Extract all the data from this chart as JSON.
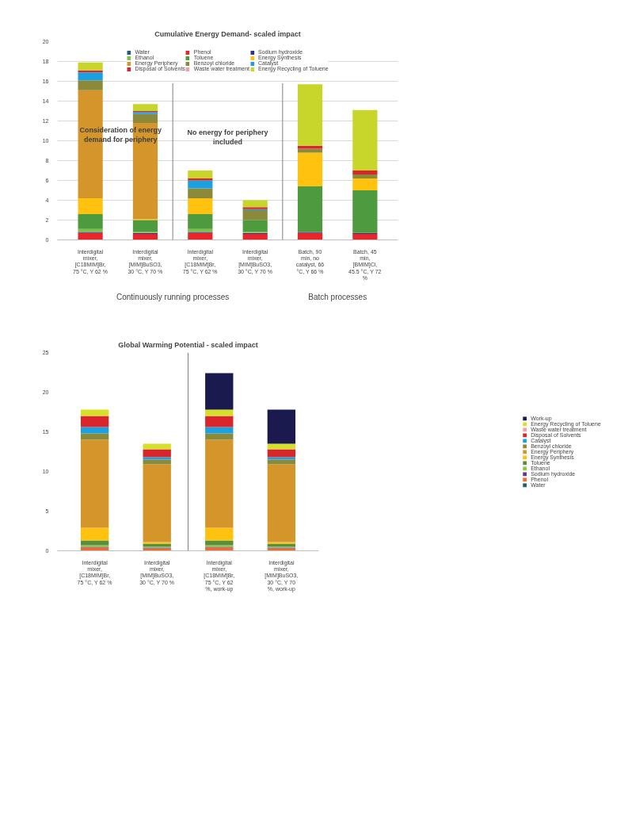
{
  "chart_data": [
    {
      "type": "bar",
      "stacked": true,
      "title": "Cumulative Energy Demand- scaled impact",
      "categories": [
        "Interdigital mixer, [C18MIM]Br, 75 °C, Y 62 %",
        "Interdigital mixer, [MIM]BuSO3, 30 °C, Y 70 %",
        "Interdigital mixer, [C18MIM]Br, 75 °C, Y 62 %",
        "Interdigital mixer, [MIM]BuSO3, 30 °C, Y 70 %",
        "Batch, 90 min, no catalyst, 66 °C, Y 66 %",
        "Batch, 45 min, [BMIM]Cl, 45.5 °C, Y 72 %"
      ],
      "series": [
        {
          "name": "Water",
          "color": "#1f5f7a",
          "values": [
            0,
            0,
            0,
            0,
            0,
            0
          ]
        },
        {
          "name": "Phenol",
          "color": "#e8262a",
          "values": [
            0.7,
            0.6,
            0.7,
            0.6,
            0.7,
            0.6
          ]
        },
        {
          "name": "Sodium hydroxide",
          "color": "#3b2f8a",
          "values": [
            0.1,
            0.1,
            0.1,
            0.1,
            0.1,
            0.1
          ]
        },
        {
          "name": "Ethanol",
          "color": "#7cc243",
          "values": [
            0.3,
            0.1,
            0.3,
            0.1,
            0,
            0
          ]
        },
        {
          "name": "Toluene",
          "color": "#4e9a3e",
          "values": [
            1.5,
            1.2,
            1.5,
            1.2,
            4.6,
            4.3
          ]
        },
        {
          "name": "Energy Synthesis",
          "color": "#ffc20e",
          "values": [
            1.6,
            0.1,
            1.6,
            0,
            3.4,
            1.2
          ]
        },
        {
          "name": "Energy Periphery",
          "color": "#d4952a",
          "values": [
            10.9,
            9.7,
            0,
            0,
            0,
            0
          ]
        },
        {
          "name": "Benzoyl chloride",
          "color": "#8b8a3a",
          "values": [
            1.0,
            0.9,
            1.0,
            1.0,
            0.4,
            0.4
          ]
        },
        {
          "name": "Catalyst",
          "color": "#1ba1e2",
          "values": [
            0.8,
            0.2,
            0.8,
            0.1,
            0,
            0
          ]
        },
        {
          "name": "Disposal of Solvents",
          "color": "#d9262c",
          "values": [
            0.2,
            0.1,
            0.2,
            0.2,
            0.3,
            0.4
          ]
        },
        {
          "name": "Waste water treatment",
          "color": "#f4a0a0",
          "values": [
            0,
            0,
            0,
            0,
            0,
            0
          ]
        },
        {
          "name": "Energy Recycling of Toluene",
          "color": "#c8d62b",
          "values": [
            0.8,
            0.7,
            0.8,
            0.7,
            6.2,
            6.1
          ]
        }
      ],
      "ylim": [
        0,
        20
      ],
      "yticks": [
        0,
        2,
        4,
        6,
        8,
        10,
        12,
        14,
        16,
        18,
        20
      ],
      "grid": "y",
      "legend": "top",
      "annotations": [
        "Consideration of energy demand for periphery",
        "No energy for periphery included",
        "Continuously running processes",
        "Batch processes"
      ]
    },
    {
      "type": "bar",
      "stacked": true,
      "title": "Global Warming Potential - scaled impact",
      "categories": [
        "Interdigital mixer, [C18MIM]Br, 75 °C, Y 62 %",
        "Interdigital mixer, [MIM]BuSO3, 30 °C, Y 70 %",
        "Interdigital mixer, [C18MIM]Br, 75 °C, Y 62 %, work-up",
        "Interdigital mixer, [MIM]BuSO3, 30 °C, Y 70 %, work-up"
      ],
      "series": [
        {
          "name": "Water",
          "color": "#1f5f7a",
          "values": [
            0,
            0,
            0,
            0
          ]
        },
        {
          "name": "Phenol",
          "color": "#f26b2a",
          "values": [
            0.4,
            0.3,
            0.4,
            0.3
          ]
        },
        {
          "name": "Sodium hydroxide",
          "color": "#5b3a8f",
          "values": [
            0.1,
            0.1,
            0.1,
            0.1
          ]
        },
        {
          "name": "Ethanol",
          "color": "#8dc63f",
          "values": [
            0.2,
            0.1,
            0.2,
            0.1
          ]
        },
        {
          "name": "Toluene",
          "color": "#5a8f3a",
          "values": [
            0.6,
            0.4,
            0.6,
            0.4
          ]
        },
        {
          "name": "Energy Synthesis",
          "color": "#ffc20e",
          "values": [
            1.6,
            0.2,
            1.6,
            0.2
          ]
        },
        {
          "name": "Energy Periphery",
          "color": "#d4952a",
          "values": [
            11.1,
            9.8,
            11.1,
            9.8
          ]
        },
        {
          "name": "Benzoyl chloride",
          "color": "#8b8a3a",
          "values": [
            0.8,
            0.6,
            0.8,
            0.6
          ]
        },
        {
          "name": "Catalyst",
          "color": "#1ba1e2",
          "values": [
            0.8,
            0.3,
            0.8,
            0.3
          ]
        },
        {
          "name": "Disposal of Solvents",
          "color": "#d9262c",
          "values": [
            1.4,
            1.0,
            1.4,
            1.0
          ]
        },
        {
          "name": "Waste water treatment",
          "color": "#f4a0a0",
          "values": [
            0,
            0,
            0,
            0
          ]
        },
        {
          "name": "Energy Recycling of Toluene",
          "color": "#d6e02a",
          "values": [
            0.8,
            0.7,
            0.8,
            0.7
          ]
        },
        {
          "name": "Work-up",
          "color": "#1a1a4e",
          "values": [
            0,
            0,
            4.6,
            4.3
          ]
        }
      ],
      "ylim": [
        0,
        25
      ],
      "yticks": [
        0,
        5,
        10,
        15,
        20,
        25
      ],
      "grid": false,
      "legend": "right"
    }
  ]
}
